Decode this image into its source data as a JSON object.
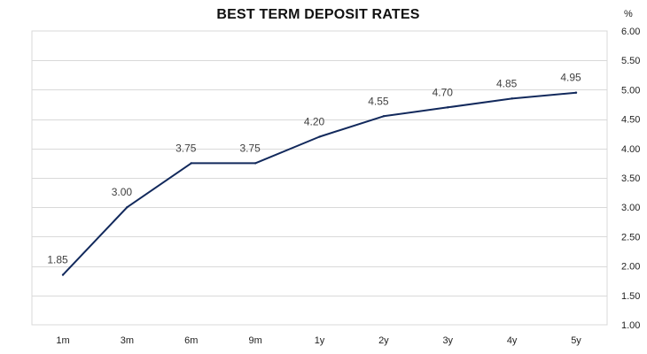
{
  "chart_data": {
    "type": "line",
    "title": "BEST TERM DEPOSIT RATES",
    "y_unit_label": "%",
    "categories": [
      "1m",
      "3m",
      "6m",
      "9m",
      "1y",
      "2y",
      "3y",
      "4y",
      "5y"
    ],
    "series": [
      {
        "values": [
          1.85,
          3.0,
          3.75,
          3.75,
          4.2,
          4.55,
          4.7,
          4.85,
          4.95
        ],
        "data_labels": [
          "1.85",
          "3.00",
          "3.75",
          "3.75",
          "4.20",
          "4.55",
          "4.70",
          "4.85",
          "4.95"
        ],
        "color": "#12295c"
      }
    ],
    "ylim": [
      1.0,
      6.0
    ],
    "y_ticks": [
      "1.00",
      "1.50",
      "2.00",
      "2.50",
      "3.00",
      "3.50",
      "4.00",
      "4.50",
      "5.00",
      "5.50",
      "6.00"
    ],
    "y_axis_position": "right",
    "grid": true,
    "legend": "none",
    "colors": {
      "line": "#12295c",
      "grid": "#d9d9d9",
      "data_label": "#404040"
    }
  }
}
